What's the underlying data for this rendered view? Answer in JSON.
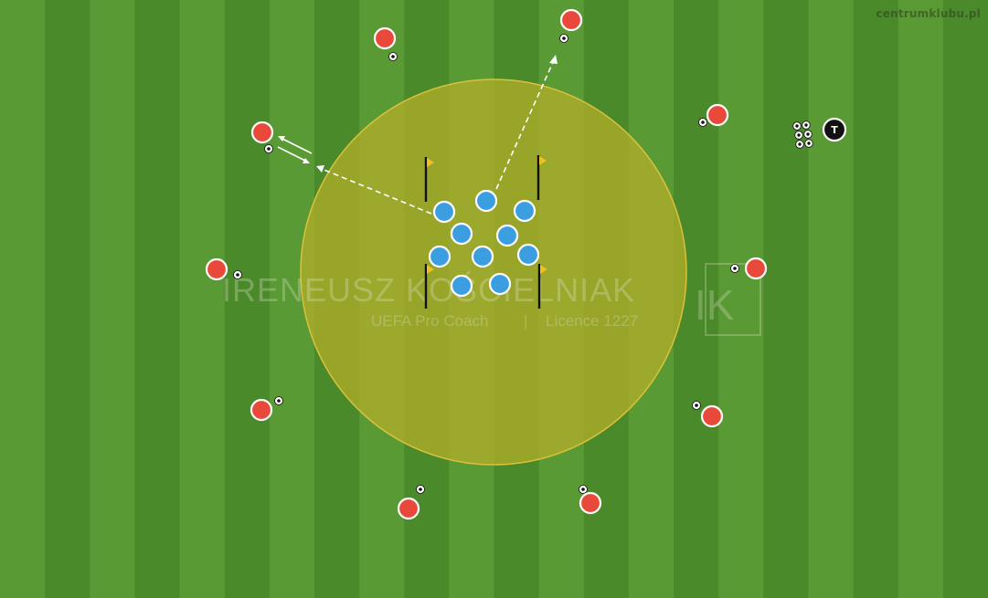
{
  "watermark": {
    "name": "IRENEUSZ KOŚCIELNIAK",
    "subtitle_left": "UEFA Pro Coach",
    "separator": "|",
    "subtitle_right": "Licence 1227",
    "logo": "IK"
  },
  "site_credit": "centrumklubu.pl",
  "coach_label": "T",
  "colors": {
    "grass_light": "#5a9a34",
    "grass_dark": "#4b8a2a",
    "zone_fill": "#a8a82a",
    "zone_stroke": "#d9c23a",
    "red_player": "#e8493a",
    "blue_player": "#3a9ee0",
    "coach": "#111111",
    "flag": "#f0c020",
    "arrow": "#ffffff"
  },
  "icons": {
    "ball": "soccer-ball-icon",
    "flag": "corner-flag-icon",
    "coach": "coach-marker-icon"
  }
}
